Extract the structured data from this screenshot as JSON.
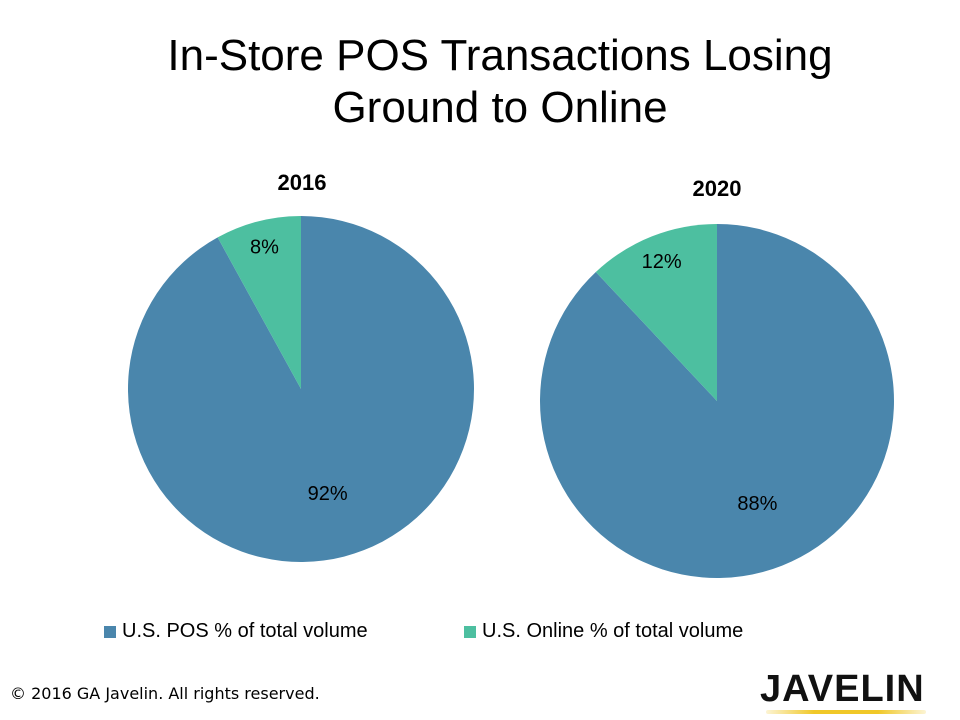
{
  "title": {
    "line1": "In-Store POS Transactions Losing",
    "line2": "Ground to Online"
  },
  "chart_data": [
    {
      "type": "pie",
      "title": "2016",
      "categories": [
        "U.S. POS % of total volume",
        "U.S. Online % of total volume"
      ],
      "values": [
        92,
        8
      ],
      "labels": [
        "92%",
        "8%"
      ],
      "colors": [
        "#4a86ac",
        "#4dbfa0"
      ]
    },
    {
      "type": "pie",
      "title": "2020",
      "categories": [
        "U.S. POS % of total volume",
        "U.S. Online % of total volume"
      ],
      "values": [
        88,
        12
      ],
      "labels": [
        "88%",
        "12%"
      ],
      "colors": [
        "#4a86ac",
        "#4dbfa0"
      ]
    }
  ],
  "legend": {
    "placement": "bottom",
    "items": [
      {
        "label": "U.S. POS % of total volume",
        "color": "#4a86ac"
      },
      {
        "label": "U.S. Online % of total volume",
        "color": "#4dbfa0"
      }
    ]
  },
  "footer": {
    "copyright": "© 2016 GA  Javelin.  All rights reserved."
  },
  "logo": {
    "text": "JAVELIN"
  }
}
